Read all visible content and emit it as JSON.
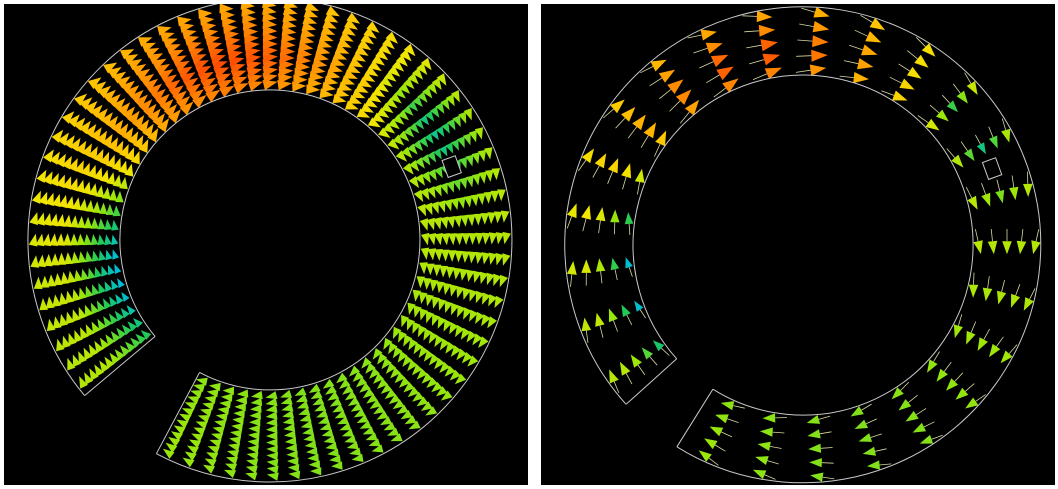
{
  "figure": {
    "background": "#000000",
    "outline_color": "#c8c8c8",
    "panels": [
      {
        "id": "dense-vector-field",
        "rows": 13,
        "arrows_per_row": 64,
        "arrow_style": "wedge",
        "gap_position": "bottom-left"
      },
      {
        "id": "sparse-vector-field",
        "rows": 5,
        "arrows_per_row": 24,
        "arrow_style": "wedge-with-tail",
        "gap_position": "bottom-left"
      }
    ],
    "colormap": [
      "#00bcd4",
      "#1ec85a",
      "#9be60a",
      "#f2e600",
      "#ffc000",
      "#ff8a00",
      "#ff3c00"
    ]
  }
}
